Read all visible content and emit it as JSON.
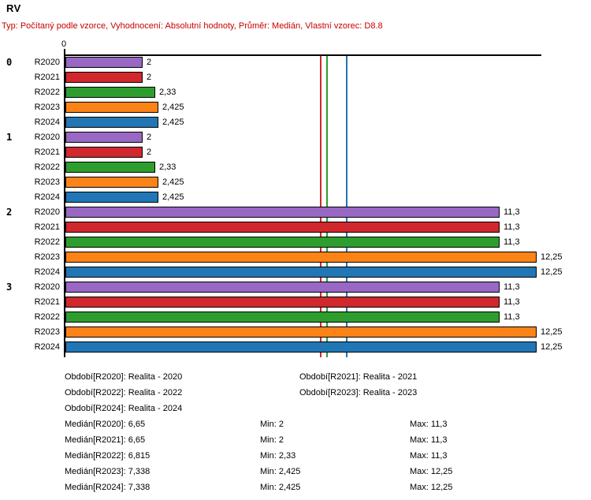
{
  "title": "RV",
  "subtitle": "Typ: Počítaný podle vzorce, Vyhodnocení: Absolutní hodnoty, Průměr: Medián, Vlastní vzorec: D8.8",
  "subtitle_color": "#c80000",
  "chart_data": {
    "type": "bar",
    "orientation": "horizontal",
    "title": "RV",
    "axis": {
      "origin_tick": "0",
      "xlim": [
        0,
        12.4
      ],
      "grid": false
    },
    "series_colors": {
      "R2020": "#9868c4",
      "R2021": "#d0282c",
      "R2022": "#2d9e2d",
      "R2023": "#fb8317",
      "R2024": "#2176b5"
    },
    "groups": [
      {
        "label": "0",
        "bars": [
          {
            "series": "R2020",
            "value": 2,
            "display": "2"
          },
          {
            "series": "R2021",
            "value": 2,
            "display": "2"
          },
          {
            "series": "R2022",
            "value": 2.33,
            "display": "2,33"
          },
          {
            "series": "R2023",
            "value": 2.425,
            "display": "2,425"
          },
          {
            "series": "R2024",
            "value": 2.425,
            "display": "2,425"
          }
        ]
      },
      {
        "label": "1",
        "bars": [
          {
            "series": "R2020",
            "value": 2,
            "display": "2"
          },
          {
            "series": "R2021",
            "value": 2,
            "display": "2"
          },
          {
            "series": "R2022",
            "value": 2.33,
            "display": "2,33"
          },
          {
            "series": "R2023",
            "value": 2.425,
            "display": "2,425"
          },
          {
            "series": "R2024",
            "value": 2.425,
            "display": "2,425"
          }
        ]
      },
      {
        "label": "2",
        "bars": [
          {
            "series": "R2020",
            "value": 11.3,
            "display": "11,3"
          },
          {
            "series": "R2021",
            "value": 11.3,
            "display": "11,3"
          },
          {
            "series": "R2022",
            "value": 11.3,
            "display": "11,3"
          },
          {
            "series": "R2023",
            "value": 12.25,
            "display": "12,25"
          },
          {
            "series": "R2024",
            "value": 12.25,
            "display": "12,25"
          }
        ]
      },
      {
        "label": "3",
        "bars": [
          {
            "series": "R2020",
            "value": 11.3,
            "display": "11,3"
          },
          {
            "series": "R2021",
            "value": 11.3,
            "display": "11,3"
          },
          {
            "series": "R2022",
            "value": 11.3,
            "display": "11,3"
          },
          {
            "series": "R2023",
            "value": 12.25,
            "display": "12,25"
          },
          {
            "series": "R2024",
            "value": 12.25,
            "display": "12,25"
          }
        ]
      }
    ],
    "median_lines": [
      {
        "series": "R2020",
        "value": 6.65,
        "color": "#9868c4"
      },
      {
        "series": "R2021",
        "value": 6.65,
        "color": "#d0282c"
      },
      {
        "series": "R2022",
        "value": 6.815,
        "color": "#2d9e2d"
      },
      {
        "series": "R2023",
        "value": 7.338,
        "color": "#fb8317"
      },
      {
        "series": "R2024",
        "value": 7.338,
        "color": "#2176b5"
      }
    ]
  },
  "legend": {
    "periods": [
      {
        "left": "Období[R2020]: Realita - 2020",
        "right": "Období[R2021]: Realita - 2021"
      },
      {
        "left": "Období[R2022]: Realita - 2022",
        "right": "Období[R2023]: Realita - 2023"
      },
      {
        "left": "Období[R2024]: Realita - 2024",
        "right": ""
      }
    ],
    "stats": [
      {
        "median": "Medián[R2020]: 6,65",
        "min": "Min: 2",
        "max": "Max: 11,3"
      },
      {
        "median": "Medián[R2021]: 6,65",
        "min": "Min: 2",
        "max": "Max: 11,3"
      },
      {
        "median": "Medián[R2022]: 6,815",
        "min": "Min: 2,33",
        "max": "Max: 11,3"
      },
      {
        "median": "Medián[R2023]: 7,338",
        "min": "Min: 2,425",
        "max": "Max: 12,25"
      },
      {
        "median": "Medián[R2024]: 7,338",
        "min": "Min: 2,425",
        "max": "Max: 12,25"
      }
    ]
  }
}
